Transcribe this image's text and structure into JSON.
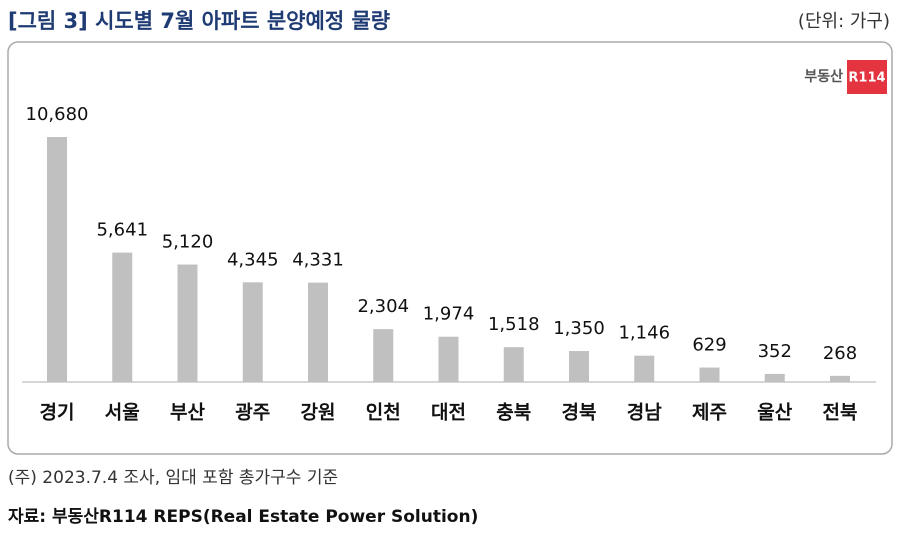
{
  "chart_data": {
    "type": "bar",
    "title": "[그림 3] 시도별 7월 아파트 분양예정 물량",
    "unit": "(단위: 가구)",
    "logo": {
      "brand": "부동산",
      "mark": "R114"
    },
    "categories": [
      "경기",
      "서울",
      "부산",
      "광주",
      "강원",
      "인천",
      "대전",
      "충북",
      "경북",
      "경남",
      "제주",
      "울산",
      "전북"
    ],
    "values": [
      10680,
      5641,
      5120,
      4345,
      4331,
      2304,
      1974,
      1518,
      1350,
      1146,
      629,
      352,
      268
    ],
    "value_labels": [
      "10,680",
      "5,641",
      "5,120",
      "4,345",
      "4,331",
      "2,304",
      "1,974",
      "1,518",
      "1,350",
      "1,146",
      "629",
      "352",
      "268"
    ],
    "color": "#c0c0c0",
    "note": "(주) 2023.7.4 조사, 임대 포함 총가구수 기준",
    "source": "자료: 부동산R114 REPS(Real Estate Power Solution)"
  }
}
